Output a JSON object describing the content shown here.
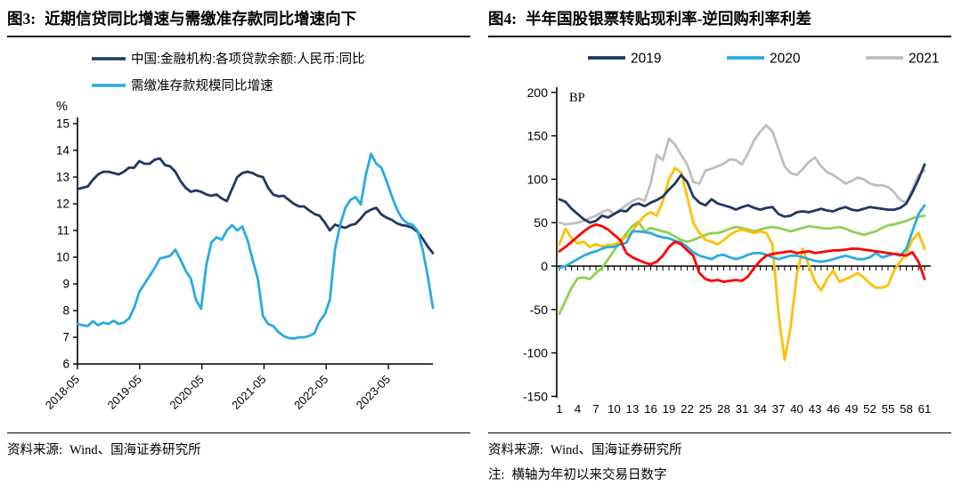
{
  "figure3": {
    "title_prefix": "图3:",
    "title": "近期信贷同比增速与需缴准存款同比增速向下",
    "source_label": "资料来源:",
    "source": "Wind、国海证券研究所"
  },
  "figure4": {
    "title_prefix": "图4:",
    "title": "半年国股银票转贴现利率-逆回购利率利差",
    "source_label": "资料来源:",
    "source": "Wind、国海证券研究所",
    "note_label": "注:",
    "note": "横轴为年初以来交易日数字"
  },
  "chart_data": [
    {
      "type": "line",
      "title": "近期信贷同比增速与需缴准存款同比增速向下",
      "unit_label": "%",
      "ylim": [
        6,
        15
      ],
      "yticks": [
        6,
        7,
        8,
        9,
        10,
        11,
        12,
        13,
        14,
        15
      ],
      "x_tick_labels": [
        "2018-05",
        "2019-05",
        "2020-05",
        "2021-05",
        "2022-05",
        "2023-05"
      ],
      "legend": "vertical",
      "grid": false,
      "series": [
        {
          "name": "中国:金融机构:各项贷款余额:人民币:同比",
          "color": "#1f3864",
          "values": [
            12.55,
            12.6,
            12.65,
            12.9,
            13.1,
            13.2,
            13.2,
            13.15,
            13.1,
            13.2,
            13.35,
            13.35,
            13.6,
            13.5,
            13.5,
            13.65,
            13.7,
            13.45,
            13.4,
            13.2,
            12.85,
            12.6,
            12.45,
            12.5,
            12.45,
            12.35,
            12.3,
            12.35,
            12.2,
            12.1,
            12.55,
            13.0,
            13.15,
            13.2,
            13.15,
            13.05,
            13.0,
            12.6,
            12.35,
            12.28,
            12.3,
            12.15,
            12.0,
            11.9,
            11.9,
            11.75,
            11.62,
            11.55,
            11.3,
            11.0,
            11.22,
            11.15,
            11.1,
            11.2,
            11.25,
            11.45,
            11.68,
            11.78,
            11.85,
            11.6,
            11.48,
            11.4,
            11.27,
            11.2,
            11.17,
            11.1,
            10.95,
            10.7,
            10.4,
            10.15
          ]
        },
        {
          "name": "需缴准存款规模同比增速",
          "color": "#29abe2",
          "values": [
            7.5,
            7.45,
            7.42,
            7.6,
            7.45,
            7.55,
            7.5,
            7.62,
            7.5,
            7.55,
            7.7,
            8.1,
            8.7,
            9.0,
            9.3,
            9.6,
            9.95,
            10.0,
            10.05,
            10.28,
            9.9,
            9.5,
            9.2,
            8.4,
            8.07,
            9.7,
            10.55,
            10.75,
            10.65,
            11.0,
            11.2,
            11.0,
            11.15,
            10.65,
            9.9,
            9.2,
            7.8,
            7.5,
            7.42,
            7.2,
            7.05,
            6.97,
            6.95,
            7.0,
            7.0,
            7.05,
            7.15,
            7.6,
            7.85,
            8.4,
            10.3,
            11.2,
            11.85,
            12.15,
            12.25,
            11.97,
            13.1,
            13.87,
            13.5,
            13.35,
            12.85,
            12.3,
            11.8,
            11.45,
            11.27,
            11.22,
            11.0,
            10.3,
            9.3,
            8.1
          ]
        }
      ]
    },
    {
      "type": "line",
      "title": "半年国股银票转贴现利率-逆回购利率利差",
      "unit_label": "BP",
      "ylim": [
        -150,
        200
      ],
      "yticks": [
        200,
        150,
        100,
        50,
        0,
        -50,
        -100,
        -150
      ],
      "x_range": [
        1,
        61
      ],
      "x_tick_labels": [
        "1",
        "4",
        "7",
        "10",
        "13",
        "16",
        "19",
        "22",
        "25",
        "28",
        "31",
        "34",
        "37",
        "40",
        "43",
        "46",
        "49",
        "52",
        "55",
        "58",
        "61"
      ],
      "legend": "horizontal",
      "grid": false,
      "series": [
        {
          "name": "2021",
          "color": "#bfbfbf",
          "values": [
            50,
            48,
            49,
            50,
            52,
            55,
            58,
            62,
            65,
            60,
            65,
            70,
            75,
            78,
            75,
            95,
            128,
            122,
            147,
            140,
            128,
            117,
            97,
            95,
            110,
            112,
            115,
            118,
            123,
            122,
            117,
            130,
            145,
            155,
            162,
            155,
            135,
            115,
            107,
            105,
            112,
            120,
            125,
            115,
            108,
            105,
            100,
            95,
            98,
            102,
            100,
            95,
            93,
            93,
            91,
            85,
            76,
            73,
            88,
            105,
            110
          ]
        },
        {
          "name": "",
          "color": "#92d050",
          "values": [
            -55,
            -40,
            -25,
            -14,
            -13,
            -15,
            -8,
            -2,
            8,
            18,
            28,
            38,
            46,
            51,
            40,
            44,
            42,
            40,
            38,
            34,
            30,
            28,
            30,
            33,
            36,
            38,
            38,
            40,
            43,
            45,
            44,
            42,
            40,
            42,
            44,
            45,
            44,
            42,
            40,
            42,
            44,
            46,
            45,
            44,
            43,
            44,
            45,
            43,
            40,
            38,
            36,
            38,
            40,
            44,
            47,
            48,
            50,
            52,
            55,
            57,
            58
          ]
        },
        {
          "name": "",
          "color": "#ffc000",
          "values": [
            25,
            43,
            32,
            26,
            28,
            22,
            25,
            23,
            24,
            25,
            28,
            34,
            40,
            50,
            58,
            62,
            58,
            75,
            100,
            113,
            108,
            80,
            50,
            38,
            30,
            28,
            25,
            30,
            36,
            40,
            42,
            40,
            38,
            40,
            38,
            25,
            -55,
            -108,
            -70,
            -10,
            20,
            0,
            -18,
            -28,
            -15,
            -5,
            -18,
            -15,
            -12,
            -8,
            -13,
            -20,
            -25,
            -25,
            -22,
            -5,
            5,
            15,
            30,
            38,
            20
          ]
        },
        {
          "name": "2020",
          "color": "#29abe2",
          "values": [
            -2,
            0,
            4,
            8,
            12,
            15,
            17,
            20,
            22,
            22,
            25,
            27,
            40,
            40,
            39,
            38,
            35,
            33,
            32,
            29,
            27,
            22,
            16,
            12,
            10,
            8,
            12,
            13,
            10,
            8,
            10,
            13,
            15,
            15,
            13,
            10,
            8,
            10,
            12,
            12,
            10,
            8,
            6,
            5,
            6,
            8,
            10,
            12,
            10,
            8,
            8,
            10,
            15,
            10,
            12,
            14,
            12,
            20,
            40,
            60,
            70
          ]
        },
        {
          "name": "",
          "color": "#ff0000",
          "values": [
            17,
            22,
            28,
            34,
            40,
            45,
            48,
            46,
            42,
            36,
            30,
            15,
            10,
            7,
            4,
            2,
            5,
            12,
            22,
            28,
            25,
            18,
            12,
            -8,
            -15,
            -17,
            -16,
            -18,
            -17,
            -16,
            -17,
            -12,
            -2,
            6,
            12,
            14,
            15,
            16,
            17,
            15,
            16,
            17,
            15,
            16,
            17,
            18,
            18,
            19,
            20,
            20,
            19,
            18,
            17,
            16,
            15,
            14,
            13,
            12,
            16,
            5,
            -15
          ]
        },
        {
          "name": "2019",
          "color": "#1f3864",
          "values": [
            77,
            74,
            66,
            60,
            54,
            50,
            52,
            58,
            56,
            60,
            64,
            63,
            70,
            72,
            69,
            73,
            76,
            80,
            88,
            95,
            105,
            97,
            80,
            73,
            70,
            77,
            72,
            70,
            68,
            65,
            68,
            70,
            67,
            65,
            67,
            68,
            60,
            57,
            58,
            62,
            63,
            62,
            64,
            66,
            64,
            63,
            66,
            68,
            65,
            64,
            66,
            68,
            67,
            66,
            65,
            65,
            67,
            72,
            85,
            100,
            117
          ]
        }
      ],
      "legend_order": [
        "2019",
        "2020",
        "2021"
      ]
    }
  ]
}
